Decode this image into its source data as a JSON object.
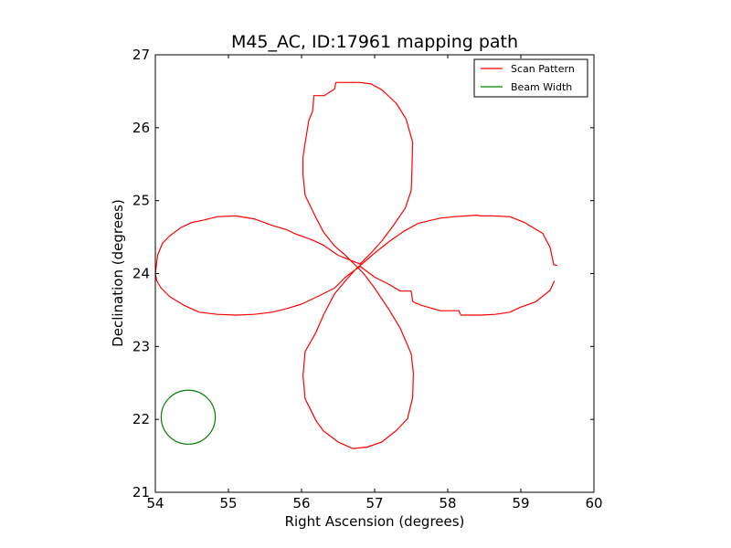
{
  "chart_data": {
    "type": "line",
    "title": "M45_AC, ID:17961 mapping path",
    "xlabel": "Right Ascension (degrees)",
    "ylabel": "Declination (degrees)",
    "xlim": [
      54,
      60
    ],
    "ylim": [
      21,
      27
    ],
    "xticks": [
      54,
      55,
      56,
      57,
      58,
      59,
      60
    ],
    "yticks": [
      21,
      22,
      23,
      24,
      25,
      26,
      27
    ],
    "grid": false,
    "legend_position": "top-right",
    "series": [
      {
        "name": "Scan Pattern",
        "color": "#ff0000",
        "points": [
          [
            59.5,
            24.11
          ],
          [
            59.45,
            24.12
          ],
          [
            59.4,
            24.36
          ],
          [
            59.3,
            24.55
          ],
          [
            59.05,
            24.7
          ],
          [
            58.85,
            24.78
          ],
          [
            58.6,
            24.79
          ],
          [
            58.45,
            24.79
          ],
          [
            58.4,
            24.8
          ],
          [
            58.1,
            24.78
          ],
          [
            57.9,
            24.76
          ],
          [
            57.6,
            24.69
          ],
          [
            57.4,
            24.58
          ],
          [
            57.2,
            24.44
          ],
          [
            57.0,
            24.28
          ],
          [
            56.85,
            24.15
          ],
          [
            56.75,
            24.07
          ],
          [
            56.6,
            23.9
          ],
          [
            56.45,
            23.72
          ],
          [
            56.3,
            23.43
          ],
          [
            56.2,
            23.2
          ],
          [
            56.05,
            22.93
          ],
          [
            56.02,
            22.6
          ],
          [
            56.05,
            22.28
          ],
          [
            56.2,
            21.98
          ],
          [
            56.3,
            21.84
          ],
          [
            56.5,
            21.69
          ],
          [
            56.7,
            21.6
          ],
          [
            56.9,
            21.62
          ],
          [
            57.1,
            21.69
          ],
          [
            57.3,
            21.85
          ],
          [
            57.45,
            22.01
          ],
          [
            57.52,
            22.3
          ],
          [
            57.53,
            22.63
          ],
          [
            57.5,
            22.9
          ],
          [
            57.35,
            23.25
          ],
          [
            57.2,
            23.5
          ],
          [
            57.0,
            23.8
          ],
          [
            56.85,
            24.0
          ],
          [
            56.75,
            24.1
          ],
          [
            56.6,
            24.25
          ],
          [
            56.45,
            24.38
          ],
          [
            56.3,
            24.57
          ],
          [
            56.2,
            24.76
          ],
          [
            56.05,
            25.07
          ],
          [
            56.02,
            25.35
          ],
          [
            56.02,
            25.59
          ],
          [
            56.05,
            25.8
          ],
          [
            56.1,
            26.1
          ],
          [
            56.15,
            26.22
          ],
          [
            56.17,
            26.44
          ],
          [
            56.31,
            26.44
          ],
          [
            56.45,
            26.53
          ],
          [
            56.47,
            26.62
          ],
          [
            56.8,
            26.62
          ],
          [
            56.95,
            26.6
          ],
          [
            57.1,
            26.52
          ],
          [
            57.3,
            26.33
          ],
          [
            57.43,
            26.12
          ],
          [
            57.52,
            25.8
          ],
          [
            57.51,
            25.4
          ],
          [
            57.5,
            25.14
          ],
          [
            57.42,
            24.9
          ],
          [
            57.25,
            24.65
          ],
          [
            57.1,
            24.45
          ],
          [
            56.95,
            24.28
          ],
          [
            56.8,
            24.13
          ],
          [
            56.5,
            24.25
          ],
          [
            56.3,
            24.39
          ],
          [
            56.15,
            24.46
          ],
          [
            55.9,
            24.55
          ],
          [
            55.8,
            24.6
          ],
          [
            55.6,
            24.66
          ],
          [
            55.35,
            24.75
          ],
          [
            55.1,
            24.79
          ],
          [
            54.85,
            24.78
          ],
          [
            54.65,
            24.73
          ],
          [
            54.5,
            24.7
          ],
          [
            54.35,
            24.63
          ],
          [
            54.2,
            24.52
          ],
          [
            54.1,
            24.42
          ],
          [
            54.03,
            24.25
          ],
          [
            54.0,
            24.0
          ],
          [
            54.02,
            23.9
          ],
          [
            54.08,
            23.8
          ],
          [
            54.2,
            23.68
          ],
          [
            54.4,
            23.56
          ],
          [
            54.6,
            23.47
          ],
          [
            54.85,
            23.44
          ],
          [
            55.1,
            23.43
          ],
          [
            55.35,
            23.44
          ],
          [
            55.6,
            23.47
          ],
          [
            55.8,
            23.52
          ],
          [
            56.0,
            23.58
          ],
          [
            56.25,
            23.7
          ],
          [
            56.45,
            23.8
          ],
          [
            56.6,
            23.95
          ],
          [
            56.8,
            24.1
          ],
          [
            57.0,
            23.95
          ],
          [
            57.2,
            23.85
          ],
          [
            57.35,
            23.76
          ],
          [
            57.5,
            23.76
          ],
          [
            57.52,
            23.62
          ],
          [
            57.55,
            23.6
          ],
          [
            57.65,
            23.56
          ],
          [
            57.9,
            23.49
          ],
          [
            58.15,
            23.49
          ],
          [
            58.18,
            23.43
          ],
          [
            58.45,
            23.43
          ],
          [
            58.65,
            23.44
          ],
          [
            58.85,
            23.47
          ],
          [
            59.0,
            23.54
          ],
          [
            59.2,
            23.61
          ],
          [
            59.4,
            23.77
          ],
          [
            59.46,
            23.9
          ]
        ]
      },
      {
        "name": "Beam Width",
        "color": "#008000",
        "shape": "circle",
        "center": [
          54.45,
          22.03
        ],
        "radius": 0.37
      }
    ]
  }
}
